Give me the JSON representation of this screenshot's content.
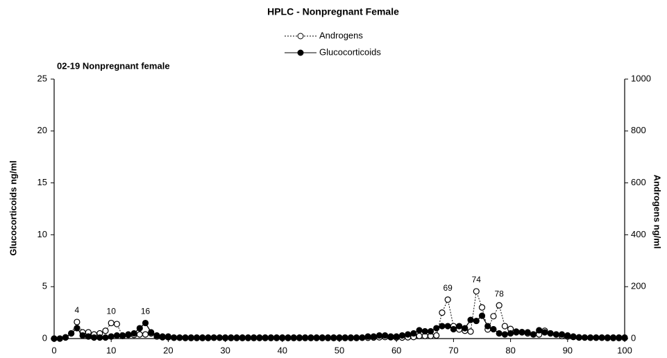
{
  "chart_data": {
    "type": "line",
    "title": "HPLC - Nonpregnant Female",
    "subtitle": "02-19 Nonpregnant female",
    "y_label": "Glucocorticoids ng/ml",
    "y2_label": "Androgens ng/ml",
    "x": [
      0,
      1,
      2,
      3,
      4,
      5,
      6,
      7,
      8,
      9,
      10,
      11,
      12,
      13,
      14,
      15,
      16,
      17,
      18,
      19,
      20,
      21,
      22,
      23,
      24,
      25,
      26,
      27,
      28,
      29,
      30,
      31,
      32,
      33,
      34,
      35,
      36,
      37,
      38,
      39,
      40,
      41,
      42,
      43,
      44,
      45,
      46,
      47,
      48,
      49,
      50,
      51,
      52,
      53,
      54,
      55,
      56,
      57,
      58,
      59,
      60,
      61,
      62,
      63,
      64,
      65,
      66,
      67,
      68,
      69,
      70,
      71,
      72,
      73,
      74,
      75,
      76,
      77,
      78,
      79,
      80,
      81,
      82,
      83,
      84,
      85,
      86,
      87,
      88,
      89,
      90,
      91,
      92,
      93,
      94,
      95,
      96,
      97,
      98,
      99,
      100
    ],
    "series": [
      {
        "name": "Androgens",
        "color": "#000000",
        "axis": "y2",
        "line_style": "dotted",
        "marker": "open",
        "values": [
          0,
          0,
          5,
          20,
          64,
          24,
          24,
          16,
          20,
          30,
          60,
          56,
          10,
          14,
          14,
          16,
          16,
          20,
          8,
          5,
          5,
          3,
          3,
          2,
          2,
          2,
          2,
          2,
          3,
          3,
          2,
          2,
          2,
          2,
          2,
          2,
          2,
          2,
          2,
          2,
          2,
          2,
          2,
          2,
          2,
          2,
          2,
          2,
          2,
          2,
          2,
          2,
          2,
          2,
          3,
          3,
          4,
          5,
          6,
          5,
          4,
          4,
          5,
          6,
          10,
          10,
          10,
          12,
          100,
          150,
          48,
          35,
          30,
          27,
          182,
          120,
          35,
          86,
          128,
          48,
          37,
          27,
          25,
          20,
          16,
          16,
          30,
          20,
          16,
          10,
          8,
          6,
          5,
          4,
          3,
          3,
          3,
          2,
          2,
          2,
          2
        ]
      },
      {
        "name": "Glucocorticoids",
        "color": "#000000",
        "axis": "y",
        "line_style": "solid",
        "marker": "filled",
        "values": [
          0,
          0,
          0.1,
          0.5,
          1.0,
          0.3,
          0.2,
          0.1,
          0.1,
          0.1,
          0.2,
          0.3,
          0.3,
          0.4,
          0.5,
          1.0,
          1.5,
          0.6,
          0.3,
          0.2,
          0.2,
          0.1,
          0.1,
          0.1,
          0.1,
          0.1,
          0.1,
          0.1,
          0.1,
          0.1,
          0.1,
          0.1,
          0.1,
          0.1,
          0.1,
          0.1,
          0.1,
          0.1,
          0.1,
          0.1,
          0.1,
          0.1,
          0.1,
          0.1,
          0.1,
          0.1,
          0.1,
          0.1,
          0.1,
          0.1,
          0.1,
          0.1,
          0.1,
          0.1,
          0.1,
          0.2,
          0.2,
          0.3,
          0.3,
          0.2,
          0.2,
          0.3,
          0.4,
          0.5,
          0.8,
          0.7,
          0.7,
          1.0,
          1.2,
          1.2,
          0.9,
          1.2,
          1.0,
          1.8,
          1.7,
          2.2,
          1.2,
          0.9,
          0.5,
          0.4,
          0.5,
          0.6,
          0.6,
          0.6,
          0.4,
          0.8,
          0.6,
          0.5,
          0.4,
          0.4,
          0.3,
          0.2,
          0.1,
          0.1,
          0.1,
          0.1,
          0.1,
          0.1,
          0.1,
          0.1,
          0.1
        ]
      }
    ],
    "peak_labels": [
      4,
      10,
      16,
      69,
      74,
      78
    ],
    "xlim": [
      0,
      100
    ],
    "xticks": [
      0,
      10,
      20,
      30,
      40,
      50,
      60,
      70,
      80,
      90,
      100
    ],
    "ylim": [
      0,
      25
    ],
    "yticks": [
      0,
      5,
      10,
      15,
      20,
      25
    ],
    "y2lim": [
      0,
      1000
    ],
    "y2ticks": [
      0,
      200,
      400,
      600,
      800,
      1000
    ]
  }
}
